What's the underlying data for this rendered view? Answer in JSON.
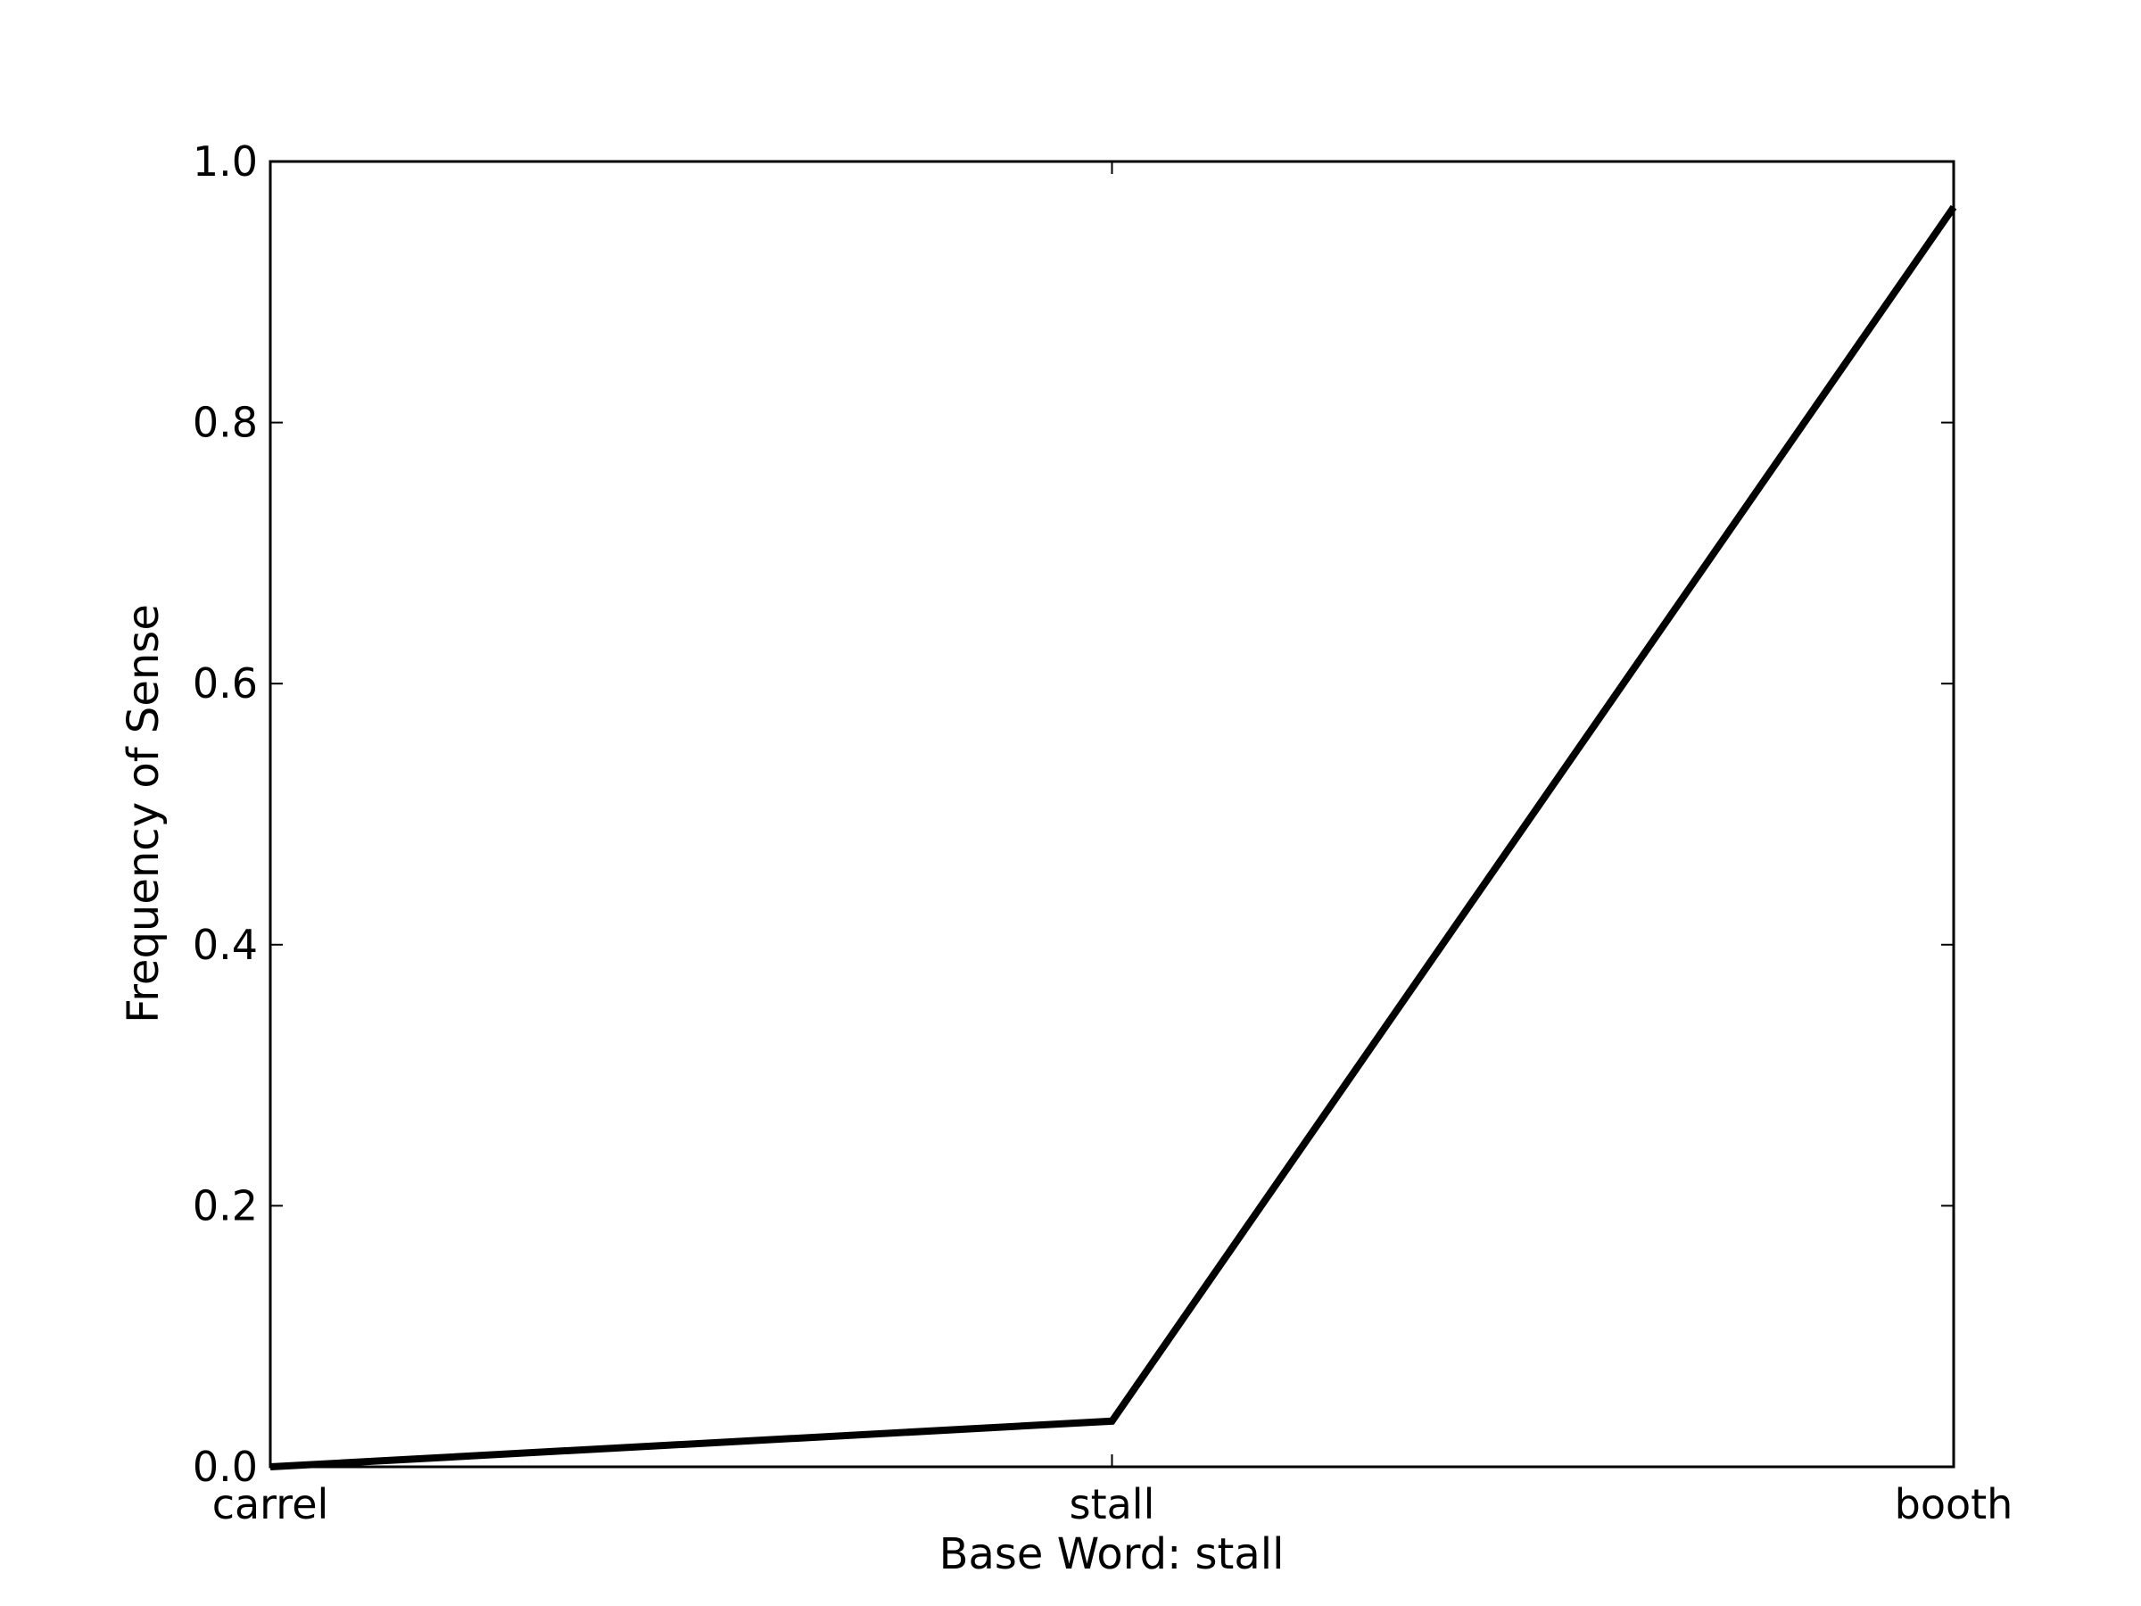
{
  "chart_data": {
    "type": "line",
    "categories": [
      "carrel",
      "stall",
      "booth"
    ],
    "series": [
      {
        "values": [
          0.0,
          0.035,
          0.965
        ]
      }
    ],
    "xlabel": "Base Word: stall",
    "ylabel": "Frequency of Sense",
    "ylim": [
      0,
      1.0
    ],
    "yticks": [
      "0.0",
      "0.2",
      "0.4",
      "0.6",
      "0.8",
      "1.0"
    ],
    "grid": false,
    "line_color": "#000000"
  }
}
